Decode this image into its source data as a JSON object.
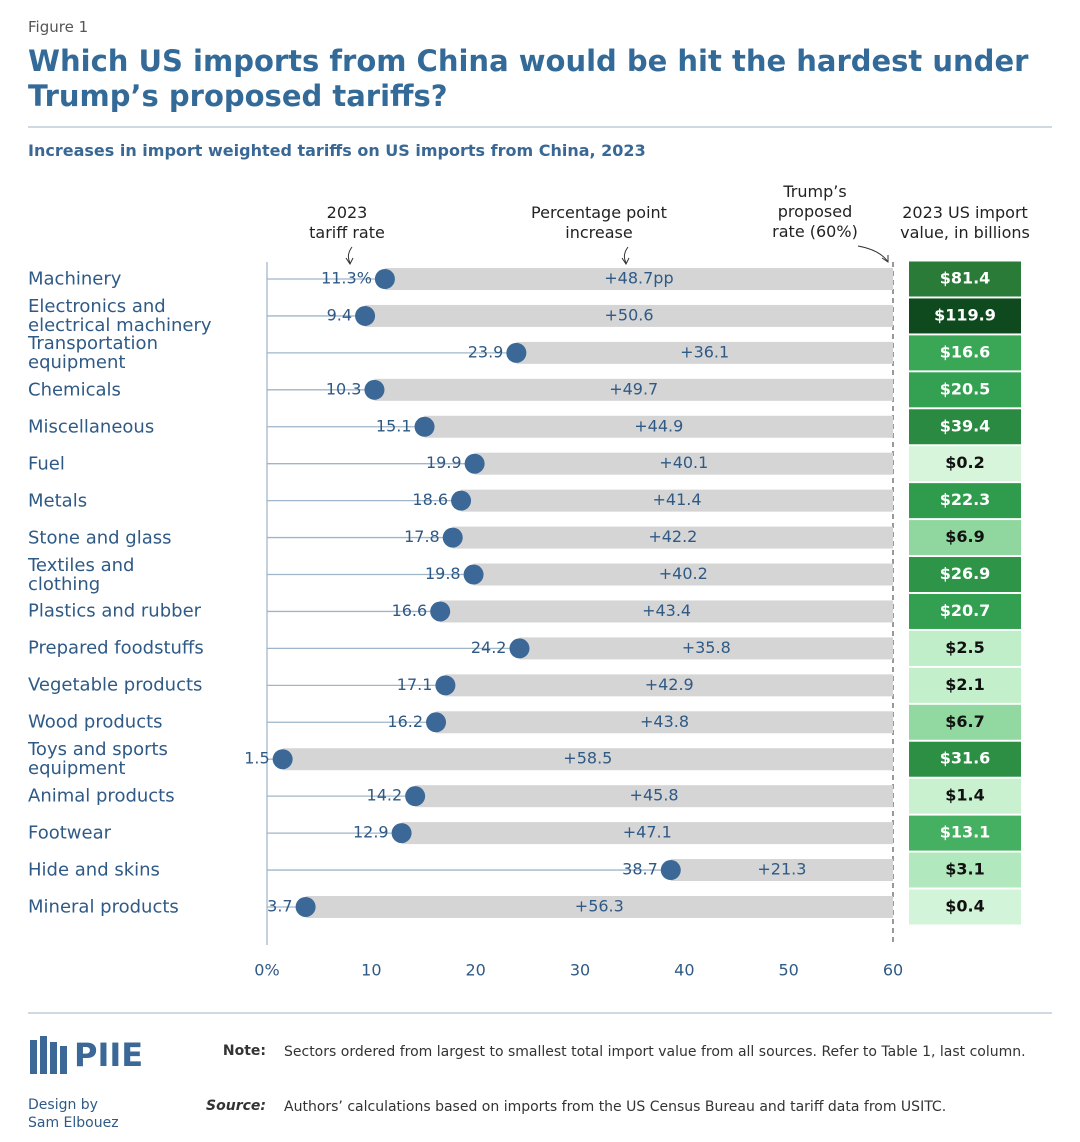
{
  "figure_label": "Figure 1",
  "chart_data": {
    "type": "dumbbell",
    "title": "Which US imports from China would be hit the hardest under\nTrump’s proposed tariffs?",
    "subtitle": "Increases in import weighted tariffs on US imports from China, 2023",
    "categories": [
      "Machinery",
      "Electronics and\nelectrical machinery",
      "Transportation\nequipment",
      "Chemicals",
      "Miscellaneous",
      "Fuel",
      "Metals",
      "Stone and glass",
      "Textiles and\nclothing",
      "Plastics and rubber",
      "Prepared foodstuffs",
      "Vegetable products",
      "Wood products",
      "Toys and sports\nequipment",
      "Animal products",
      "Footwear",
      "Hide and skins",
      "Mineral products"
    ],
    "series": [
      {
        "name": "2023\ntariff rate",
        "color": "#3b6896",
        "values": [
          11.3,
          9.4,
          23.9,
          10.3,
          15.1,
          19.9,
          18.6,
          17.8,
          19.8,
          16.6,
          24.2,
          17.1,
          16.2,
          1.5,
          14.2,
          12.9,
          38.7,
          3.7
        ],
        "value_labels": [
          "11.3%",
          "9.4",
          "23.9",
          "10.3",
          "15.1",
          "19.9",
          "18.6",
          "17.8",
          "19.8",
          "16.6",
          "24.2",
          "17.1",
          "16.2",
          "1.5",
          "14.2",
          "12.9",
          "38.7",
          "3.7"
        ]
      },
      {
        "name": "Percentage point\nincrease",
        "color": "#d5d5d5",
        "values": [
          48.7,
          50.6,
          36.1,
          49.7,
          44.9,
          40.1,
          41.4,
          42.2,
          40.2,
          43.4,
          35.8,
          42.9,
          43.8,
          58.5,
          45.8,
          47.1,
          21.3,
          56.3
        ],
        "value_labels": [
          "+48.7pp",
          "+50.6",
          "+36.1",
          "+49.7",
          "+44.9",
          "+40.1",
          "+41.4",
          "+42.2",
          "+40.2",
          "+43.4",
          "+35.8",
          "+42.9",
          "+43.8",
          "+58.5",
          "+45.8",
          "+47.1",
          "+21.3",
          "+56.3"
        ]
      }
    ],
    "reference_line": 60,
    "reference_label": "Trump’s\nproposed\nrate (60%)",
    "xlim": [
      0,
      60
    ],
    "xticks": [
      {
        "value": 0,
        "label": "0%"
      },
      10,
      20,
      30,
      40,
      50,
      60
    ],
    "import_values": {
      "name": "2023 US import\nvalue, in billions",
      "values": [
        81.4,
        119.9,
        16.6,
        20.5,
        39.4,
        0.2,
        22.3,
        6.9,
        26.9,
        20.7,
        2.5,
        2.1,
        6.7,
        31.6,
        1.4,
        13.1,
        3.1,
        0.4
      ],
      "value_labels": [
        "$81.4",
        "$119.9",
        "$16.6",
        "$20.5",
        "$39.4",
        "$0.2",
        "$22.3",
        "$6.9",
        "$26.9",
        "$20.7",
        "$2.5",
        "$2.1",
        "$6.7",
        "$31.6",
        "$1.4",
        "$13.1",
        "$3.1",
        "$0.4"
      ],
      "colors": [
        "#2a7b37",
        "#0f4a1e",
        "#3aa757",
        "#34a152",
        "#2b8a41",
        "#d6f5db",
        "#2f9b4c",
        "#8fd79e",
        "#2e9447",
        "#32a050",
        "#bfeec8",
        "#c3efcb",
        "#92d9a1",
        "#2c8f44",
        "#c9f1d0",
        "#46b062",
        "#b2e8be",
        "#d2f4d8"
      ]
    }
  },
  "footer": {
    "logo": "PIIE",
    "credit": "Design by\nSam Elbouez",
    "note_label": "Note:",
    "note": "Sectors ordered from largest to smallest total import value from all sources. Refer to Table 1, last column.",
    "source_label": "Source:",
    "source": "Authors’ calculations based on imports from the US Census Bureau and tariff data from USITC."
  }
}
